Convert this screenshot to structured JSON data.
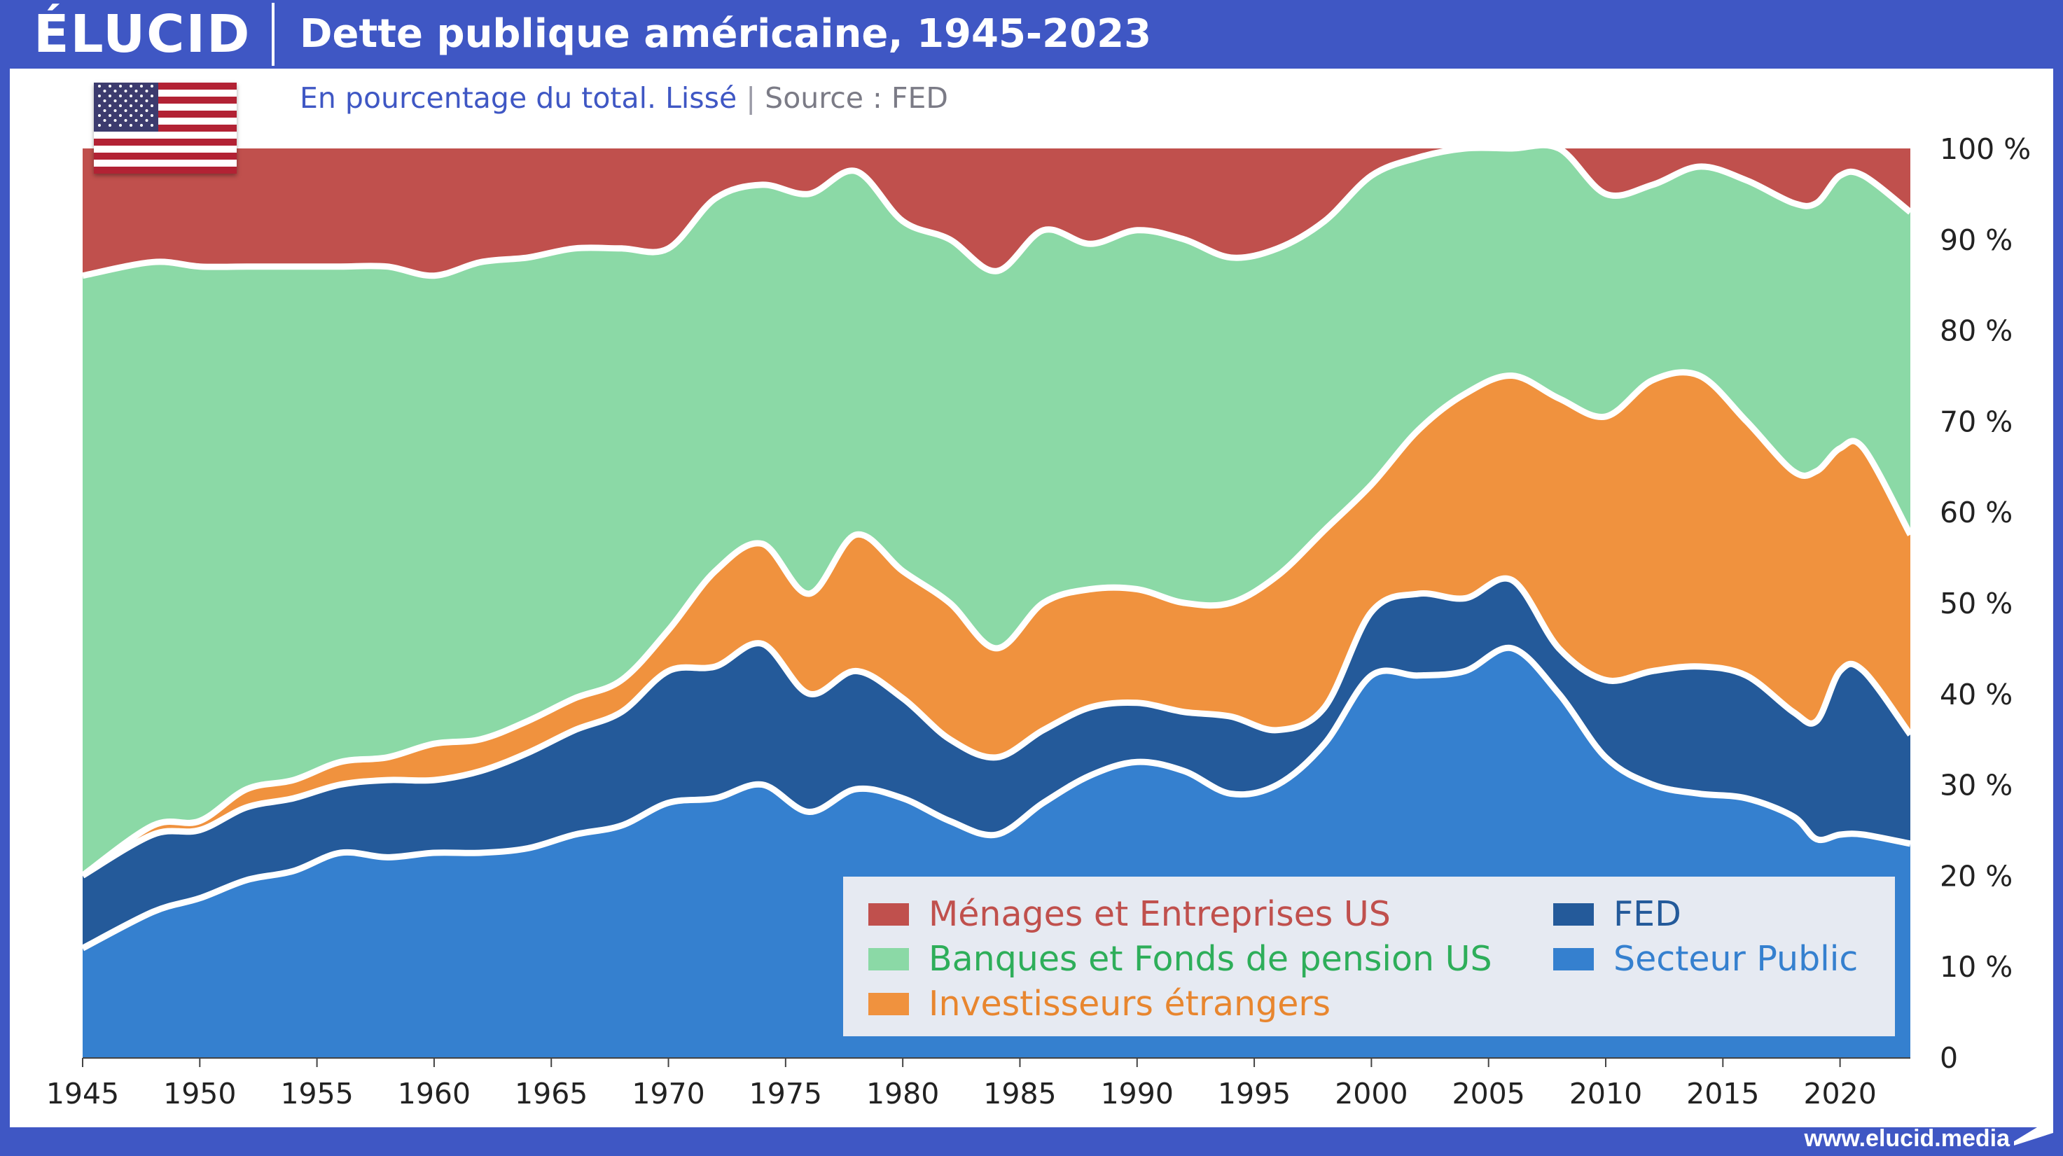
{
  "brand": {
    "logo": "ÉLUCID",
    "url": "www.elucid.media"
  },
  "header": {
    "title": "Dette publique américaine, 1945-2023"
  },
  "subtitle": {
    "main": "En pourcentage du total. Lissé",
    "separator": "|",
    "source": "Source : FED"
  },
  "flag_icon": "us-flag-icon",
  "colors": {
    "header": "#3f57c4",
    "public": "#3580cf",
    "fed": "#245a9a",
    "foreign": "#f0923e",
    "banks": "#8bd9a6",
    "households": "#c0504d"
  },
  "chart_data": {
    "type": "area",
    "stacked": true,
    "title": "Dette publique américaine, 1945-2023",
    "subtitle": "En pourcentage du total. Lissé",
    "xlabel": "",
    "ylabel": "",
    "xlim": [
      1945,
      2023
    ],
    "ylim": [
      0,
      100
    ],
    "x_ticks": [
      "1945",
      "1950",
      "1955",
      "1960",
      "1965",
      "1970",
      "1975",
      "1980",
      "1985",
      "1990",
      "1995",
      "2000",
      "2005",
      "2010",
      "2015",
      "2020"
    ],
    "y_ticks": [
      "0",
      "10 %",
      "20 %",
      "30 %",
      "40 %",
      "50 %",
      "60 %",
      "70 %",
      "80 %",
      "90 %",
      "100 %"
    ],
    "legend_position": "bottom-right",
    "x": [
      1945,
      1948,
      1950,
      1952,
      1954,
      1956,
      1958,
      1960,
      1962,
      1964,
      1966,
      1968,
      1970,
      1972,
      1974,
      1976,
      1978,
      1980,
      1982,
      1984,
      1986,
      1988,
      1990,
      1992,
      1994,
      1996,
      1998,
      2000,
      2002,
      2004,
      2006,
      2008,
      2010,
      2012,
      2014,
      2016,
      2018,
      2019,
      2020,
      2021,
      2023
    ],
    "cumulative": {
      "public": [
        12,
        16,
        17.5,
        19.5,
        20.5,
        22.5,
        22,
        22.5,
        22.5,
        23,
        24.5,
        25.5,
        28,
        28.5,
        30,
        27,
        29.5,
        28.5,
        26,
        24.5,
        28,
        31,
        32.5,
        31.5,
        29,
        30,
        34.5,
        42,
        42,
        42.5,
        45,
        40,
        33,
        30,
        29,
        28.5,
        26.5,
        24,
        24.5,
        24.5,
        23.5
      ],
      "fed": [
        20,
        24.5,
        25,
        27.5,
        28.5,
        30,
        30.5,
        30.5,
        31.5,
        33.5,
        36,
        38,
        42.5,
        43,
        45.5,
        40,
        42.5,
        39.5,
        35,
        33,
        36,
        38.5,
        39,
        38,
        37.5,
        36,
        38.5,
        49,
        51,
        50.5,
        52.5,
        45,
        41.5,
        42.5,
        43,
        42,
        38,
        37,
        42.5,
        42.5,
        35.5
      ],
      "foreign": [
        20,
        25.5,
        26,
        29.5,
        30.5,
        32.5,
        33,
        34.5,
        35,
        37,
        39.5,
        41.5,
        47,
        53.5,
        56.5,
        51,
        57.5,
        53.5,
        50,
        45,
        50,
        51.5,
        51.5,
        50,
        50,
        53,
        58,
        63,
        69,
        73,
        75,
        72.5,
        70.5,
        74.5,
        75,
        70,
        64.5,
        64.5,
        67,
        67,
        57.5
      ],
      "banks": [
        86,
        87.5,
        87,
        87,
        87,
        87,
        87,
        86,
        87.5,
        88,
        89,
        89,
        89,
        94.5,
        96,
        95,
        97.5,
        92,
        90,
        86.5,
        91,
        89.5,
        91,
        90,
        88,
        89,
        92,
        97,
        99,
        100,
        100,
        100,
        95,
        96,
        98,
        96.5,
        94,
        94,
        97,
        97,
        93
      ],
      "households": [
        100,
        100,
        100,
        100,
        100,
        100,
        100,
        100,
        100,
        100,
        100,
        100,
        100,
        100,
        100,
        100,
        100,
        100,
        100,
        100,
        100,
        100,
        100,
        100,
        100,
        100,
        100,
        100,
        100,
        100,
        100,
        100,
        100,
        100,
        100,
        100,
        100,
        100,
        100,
        100,
        100
      ]
    },
    "series": [
      {
        "key": "public",
        "name": "Secteur Public",
        "color": "#3580cf"
      },
      {
        "key": "fed",
        "name": "FED",
        "color": "#245a9a"
      },
      {
        "key": "foreign",
        "name": "Investisseurs étrangers",
        "color": "#f0923e"
      },
      {
        "key": "banks",
        "name": "Banques et Fonds de pension US",
        "color": "#8bd9a6"
      },
      {
        "key": "households",
        "name": "Ménages et Entreprises US",
        "color": "#c0504d"
      }
    ]
  },
  "legend": {
    "households": "Ménages et Entreprises US",
    "banks": "Banques et Fonds de pension US",
    "foreign": "Investisseurs étrangers",
    "fed": "FED",
    "public": "Secteur Public"
  }
}
